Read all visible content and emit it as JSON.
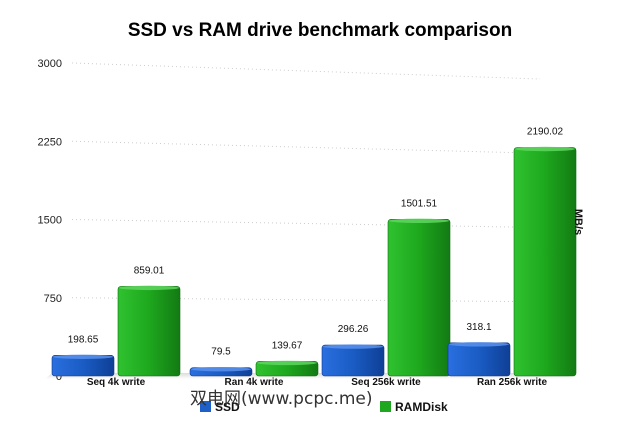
{
  "colors": {
    "ssd": "#1e5fc8",
    "ramdisk": "#1fa81f",
    "grid": "#cccccc"
  },
  "chart_data": {
    "type": "bar",
    "title": "SSD vs RAM drive benchmark comparison",
    "ylabel": "MB/s",
    "xlabel": "",
    "categories": [
      "Seq 4k write",
      "Ran 4k write",
      "Seq 256k write",
      "Ran 256k write"
    ],
    "series": [
      {
        "name": "SSD",
        "values": [
          198.65,
          79.5,
          296.26,
          318.1
        ],
        "labels": [
          "198.65",
          "79.5",
          "296.26",
          "318.1"
        ]
      },
      {
        "name": "RAMDisk",
        "values": [
          859.01,
          139.67,
          1501.51,
          2190.02
        ],
        "labels": [
          "859.01",
          "139.67",
          "1501.51",
          "2190.02"
        ]
      }
    ],
    "ylim": [
      0,
      3000
    ],
    "yticks": [
      "0",
      "750",
      "1500",
      "2250",
      "3000"
    ],
    "grid": true,
    "legend_position": "bottom"
  },
  "watermark": "双电网(www.pcpc.me)"
}
